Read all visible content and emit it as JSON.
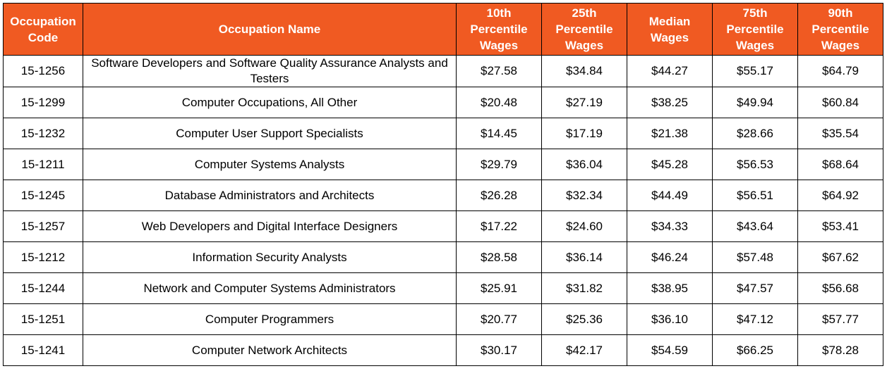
{
  "colors": {
    "header_bg": "#f05a22",
    "header_text": "#ffffff",
    "border": "#000000"
  },
  "headers": [
    "Occupation Code",
    "Occupation Name",
    "10th Percentile Wages",
    "25th Percentile Wages",
    "Median Wages",
    "75th Percentile Wages",
    "90th Percentile Wages"
  ],
  "rows": [
    [
      "15-1256",
      "Software Developers and Software Quality Assurance Analysts and Testers",
      "$27.58",
      "$34.84",
      "$44.27",
      "$55.17",
      "$64.79"
    ],
    [
      "15-1299",
      "Computer Occupations, All Other",
      "$20.48",
      "$27.19",
      "$38.25",
      "$49.94",
      "$60.84"
    ],
    [
      "15-1232",
      "Computer User Support Specialists",
      "$14.45",
      "$17.19",
      "$21.38",
      "$28.66",
      "$35.54"
    ],
    [
      "15-1211",
      "Computer Systems Analysts",
      "$29.79",
      "$36.04",
      "$45.28",
      "$56.53",
      "$68.64"
    ],
    [
      "15-1245",
      "Database Administrators and Architects",
      "$26.28",
      "$32.34",
      "$44.49",
      "$56.51",
      "$64.92"
    ],
    [
      "15-1257",
      "Web Developers and Digital Interface Designers",
      "$17.22",
      "$24.60",
      "$34.33",
      "$43.64",
      "$53.41"
    ],
    [
      "15-1212",
      "Information Security Analysts",
      "$28.58",
      "$36.14",
      "$46.24",
      "$57.48",
      "$67.62"
    ],
    [
      "15-1244",
      "Network and Computer Systems Administrators",
      "$25.91",
      "$31.82",
      "$38.95",
      "$47.57",
      "$56.68"
    ],
    [
      "15-1251",
      "Computer Programmers",
      "$20.77",
      "$25.36",
      "$36.10",
      "$47.12",
      "$57.77"
    ],
    [
      "15-1241",
      "Computer Network Architects",
      "$30.17",
      "$42.17",
      "$54.59",
      "$66.25",
      "$78.28"
    ]
  ]
}
